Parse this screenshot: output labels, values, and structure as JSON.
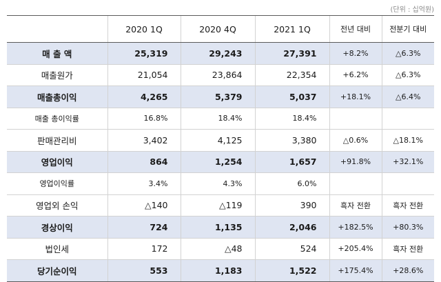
{
  "unit_label": "(단위 : 십억원)",
  "headers": [
    "",
    "2020 1Q",
    "2020 4Q",
    "2021 1Q",
    "전년 대비",
    "전분기 대비"
  ],
  "rows": [
    {
      "label": "매 출 액",
      "q1_2020": "25,319",
      "q4_2020": "29,243",
      "q1_2021": "27,391",
      "yoy": "+8.2%",
      "qoq": "△6.3%"
    },
    {
      "label": "매출원가",
      "q1_2020": "21,054",
      "q4_2020": "23,864",
      "q1_2021": "22,354",
      "yoy": "+6.2%",
      "qoq": "△6.3%"
    },
    {
      "label": "매출총이익",
      "q1_2020": "4,265",
      "q4_2020": "5,379",
      "q1_2021": "5,037",
      "yoy": "+18.1%",
      "qoq": "△6.4%"
    },
    {
      "label": "매출 총이익률",
      "q1_2020": "16.8%",
      "q4_2020": "18.4%",
      "q1_2021": "18.4%",
      "yoy": "",
      "qoq": ""
    },
    {
      "label": "판매관리비",
      "q1_2020": "3,402",
      "q4_2020": "4,125",
      "q1_2021": "3,380",
      "yoy": "△0.6%",
      "qoq": "△18.1%"
    },
    {
      "label": "영업이익",
      "q1_2020": "864",
      "q4_2020": "1,254",
      "q1_2021": "1,657",
      "yoy": "+91.8%",
      "qoq": "+32.1%"
    },
    {
      "label": "영업이익률",
      "q1_2020": "3.4%",
      "q4_2020": "4.3%",
      "q1_2021": "6.0%",
      "yoy": "",
      "qoq": ""
    },
    {
      "label": "영업외 손익",
      "q1_2020": "△140",
      "q4_2020": "△119",
      "q1_2021": "390",
      "yoy": "흑자 전환",
      "qoq": "흑자 전환"
    },
    {
      "label": "경상이익",
      "q1_2020": "724",
      "q4_2020": "1,135",
      "q1_2021": "2,046",
      "yoy": "+182.5%",
      "qoq": "+80.3%"
    },
    {
      "label": "법인세",
      "q1_2020": "172",
      "q4_2020": "△48",
      "q1_2021": "524",
      "yoy": "+205.4%",
      "qoq": "흑자 전환"
    },
    {
      "label": "당기순이익",
      "q1_2020": "553",
      "q4_2020": "1,183",
      "q1_2021": "1,522",
      "yoy": "+175.4%",
      "qoq": "+28.6%"
    }
  ],
  "colors": {
    "highlight_row": "#dfe5f2",
    "rule": "#5a5a5a",
    "grid": "#d2d2d2"
  }
}
